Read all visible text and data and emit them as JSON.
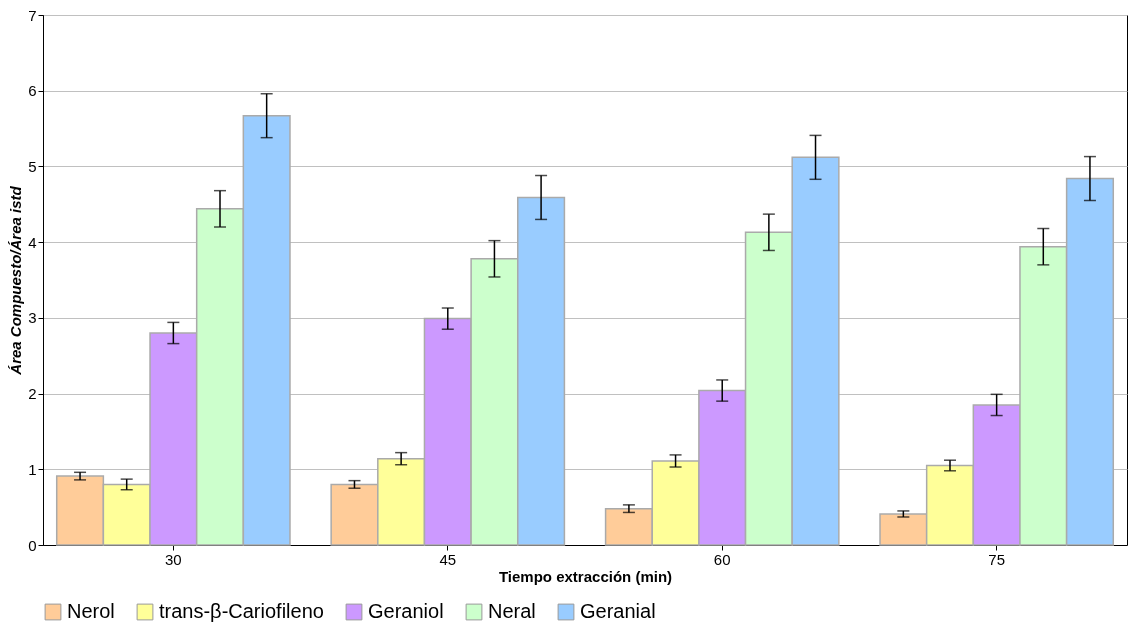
{
  "chart_data": {
    "type": "bar",
    "xlabel": "Tiempo extracción (min)",
    "ylabel": "Área Compuesto/Área istd",
    "categories": [
      "30",
      "45",
      "60",
      "75"
    ],
    "series": [
      {
        "name": "Nerol",
        "color": "#ffcc99",
        "values": [
          0.91,
          0.8,
          0.48,
          0.41
        ],
        "errors": [
          0.05,
          0.05,
          0.05,
          0.04
        ]
      },
      {
        "name": "trans-β-Cariofileno",
        "color": "#ffff99",
        "values": [
          0.8,
          1.14,
          1.11,
          1.05
        ],
        "errors": [
          0.07,
          0.08,
          0.08,
          0.07
        ]
      },
      {
        "name": "Geraniol",
        "color": "#cc99ff",
        "values": [
          2.8,
          2.99,
          2.04,
          1.85
        ],
        "errors": [
          0.14,
          0.14,
          0.14,
          0.14
        ]
      },
      {
        "name": "Neral",
        "color": "#ccffcc",
        "values": [
          4.44,
          3.78,
          4.13,
          3.94
        ],
        "errors": [
          0.24,
          0.24,
          0.24,
          0.24
        ]
      },
      {
        "name": "Geranial",
        "color": "#99ccff",
        "values": [
          5.67,
          4.59,
          5.12,
          4.84
        ],
        "errors": [
          0.29,
          0.29,
          0.29,
          0.29
        ]
      }
    ],
    "ylim": [
      0,
      7
    ],
    "yticks": [
      0,
      1,
      2,
      3,
      4,
      5,
      6,
      7
    ],
    "grid": "y",
    "legend": "bottom"
  }
}
